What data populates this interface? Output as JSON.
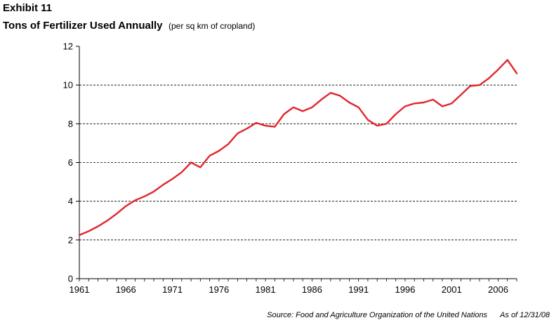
{
  "header": {
    "exhibit": "Exhibit 11",
    "title": "Tons of Fertilizer Used Annually",
    "subtitle": "(per sq km of cropland)"
  },
  "footer": {
    "source": "Source:  Food and Agriculture Organization of the United Nations",
    "as_of": "As of 12/31/08"
  },
  "chart_data": {
    "type": "line",
    "title": "Tons of Fertilizer Used Annually",
    "subtitle": "(per sq km of cropland)",
    "xlabel": "",
    "ylabel": "",
    "xlim": [
      1961,
      2008
    ],
    "ylim": [
      0,
      12
    ],
    "x_ticks": [
      1961,
      1966,
      1971,
      1976,
      1981,
      1986,
      1991,
      1996,
      2001,
      2006
    ],
    "y_ticks": [
      0,
      2,
      4,
      6,
      8,
      10,
      12
    ],
    "grid": "horizontal-dashed",
    "line_color": "#e3262e",
    "series": [
      {
        "x": [
          1961,
          1962,
          1963,
          1964,
          1965,
          1966,
          1967,
          1968,
          1969,
          1970,
          1971,
          1972,
          1973,
          1974,
          1975,
          1976,
          1977,
          1978,
          1979,
          1980,
          1981,
          1982,
          1983,
          1984,
          1985,
          1986,
          1987,
          1988,
          1989,
          1990,
          1991,
          1992,
          1993,
          1994,
          1995,
          1996,
          1997,
          1998,
          1999,
          2000,
          2001,
          2002,
          2003,
          2004,
          2005,
          2006,
          2007,
          2008
        ],
        "values": [
          2.25,
          2.45,
          2.7,
          3.0,
          3.35,
          3.75,
          4.05,
          4.25,
          4.5,
          4.85,
          5.15,
          5.5,
          6.0,
          5.75,
          6.35,
          6.6,
          6.95,
          7.5,
          7.75,
          8.05,
          7.9,
          7.85,
          8.5,
          8.85,
          8.65,
          8.85,
          9.25,
          9.6,
          9.45,
          9.1,
          8.85,
          8.2,
          7.9,
          8.0,
          8.5,
          8.9,
          9.05,
          9.1,
          9.25,
          8.9,
          9.05,
          9.5,
          9.95,
          10.0,
          10.35,
          10.8,
          11.3,
          10.6
        ]
      }
    ]
  }
}
